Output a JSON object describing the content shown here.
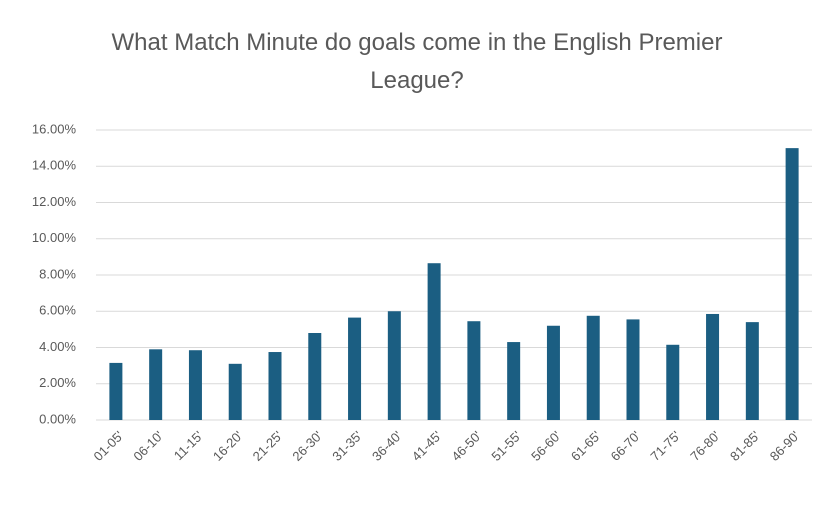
{
  "chart_data": {
    "type": "bar",
    "title": "What Match Minute do goals come in the English Premier League?",
    "categories": [
      "01-05'",
      "06-10'",
      "11-15'",
      "16-20'",
      "21-25'",
      "26-30'",
      "31-35'",
      "36-40'",
      "41-45'",
      "46-50'",
      "51-55'",
      "56-60'",
      "61-65'",
      "66-70'",
      "71-75'",
      "76-80'",
      "81-85'",
      "86-90'"
    ],
    "values": [
      3.15,
      3.9,
      3.85,
      3.1,
      3.75,
      4.8,
      5.65,
      6.0,
      8.65,
      5.45,
      4.3,
      5.2,
      5.75,
      5.55,
      4.15,
      5.85,
      5.4,
      15.0
    ],
    "color": "#1b5e82",
    "ylim": [
      0,
      16
    ],
    "yticks": [
      {
        "value": 0,
        "label": "0.00%"
      },
      {
        "value": 2,
        "label": "2.00%"
      },
      {
        "value": 4,
        "label": "4.00%"
      },
      {
        "value": 6,
        "label": "6.00%"
      },
      {
        "value": 8,
        "label": "8.00%"
      },
      {
        "value": 10,
        "label": "10.00%"
      },
      {
        "value": 12,
        "label": "12.00%"
      },
      {
        "value": 14,
        "label": "14.00%"
      },
      {
        "value": 16,
        "label": "16.00%"
      }
    ],
    "grid": true
  }
}
